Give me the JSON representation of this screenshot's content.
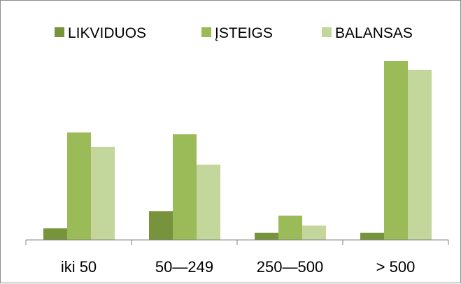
{
  "chart_data": {
    "type": "bar",
    "title": "",
    "xlabel": "",
    "ylabel": "",
    "ylim": [
      0,
      100
    ],
    "grid": false,
    "legend_position": "top",
    "categories": [
      "iki 50",
      "50—249",
      "250—500",
      "> 500"
    ],
    "series": [
      {
        "name": "LIKVIDUOS",
        "color": "#77933c",
        "values": [
          6.5,
          16,
          4,
          4
        ]
      },
      {
        "name": "ĮSTEIGS",
        "color": "#9bbb59",
        "values": [
          60,
          59,
          13.5,
          100
        ]
      },
      {
        "name": "BALANSAS",
        "color": "#c3d69b",
        "values": [
          52,
          42,
          8,
          95
        ]
      }
    ]
  }
}
